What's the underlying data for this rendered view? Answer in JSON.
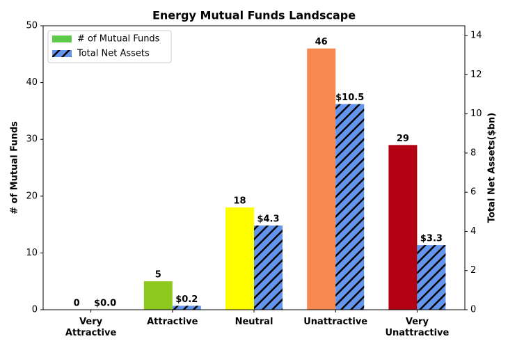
{
  "chart_data": {
    "type": "bar",
    "title": "Energy Mutual Funds Landscape",
    "categories": [
      "Very\nAttractive",
      "Attractive",
      "Neutral",
      "Unattractive",
      "Very\nUnattractive"
    ],
    "ylabel": "# of Mutual Funds",
    "y2label": "Total Net Assets($bn)",
    "ylim": [
      0,
      50
    ],
    "yticks": [
      0,
      10,
      20,
      30,
      40,
      50
    ],
    "y2lim": [
      0,
      14.5
    ],
    "y2ticks": [
      0,
      2,
      4,
      6,
      8,
      10,
      12,
      14
    ],
    "legend": "upper left",
    "series": [
      {
        "name": "# of Mutual Funds",
        "color": "#5fc94c",
        "bar_colors": [
          "#5fc94c",
          "#8dc81d",
          "#ffff00",
          "#f7884f",
          "#b30012"
        ],
        "values": [
          0,
          5,
          18,
          46,
          29
        ]
      },
      {
        "name": "Total Net Assets",
        "color": "#6495ed",
        "hatch": "//",
        "axis": "y2",
        "values": [
          0.0,
          0.2,
          4.3,
          10.5,
          3.3
        ],
        "value_labels": [
          "$0.0",
          "$0.2",
          "$4.3",
          "$10.5",
          "$3.3"
        ]
      }
    ]
  }
}
